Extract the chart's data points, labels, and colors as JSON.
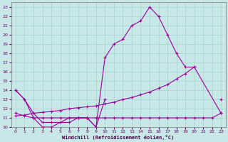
{
  "xlabel": "Windchill (Refroidissement éolien,°C)",
  "bg_color": "#c8e8e8",
  "grid_color": "#a8d0d0",
  "line_color": "#990099",
  "xlim": [
    -0.5,
    23.5
  ],
  "ylim": [
    10,
    23.5
  ],
  "xticks": [
    0,
    1,
    2,
    3,
    4,
    5,
    6,
    7,
    8,
    9,
    10,
    11,
    12,
    13,
    14,
    15,
    16,
    17,
    18,
    19,
    20,
    21,
    22,
    23
  ],
  "yticks": [
    10,
    11,
    12,
    13,
    14,
    15,
    16,
    17,
    18,
    19,
    20,
    21,
    22,
    23
  ],
  "series": [
    {
      "x": [
        0,
        1,
        2,
        3,
        4,
        5,
        6,
        7,
        8,
        9,
        10,
        11,
        12,
        13,
        14,
        15,
        16,
        17,
        18,
        19,
        20,
        21,
        22,
        23
      ],
      "y": [
        14.0,
        13.0,
        11.0,
        10.0,
        10.0,
        10.5,
        10.5,
        11.0,
        11.0,
        10.0,
        17.5,
        19.0,
        19.5,
        21.0,
        21.5,
        23.0,
        22.0,
        20.0,
        18.0,
        16.5,
        16.5,
        null,
        null,
        13.0
      ]
    },
    {
      "x": [
        0,
        1,
        2,
        3,
        4,
        5,
        6,
        7,
        8,
        9,
        10
      ],
      "y": [
        14.0,
        13.0,
        11.5,
        10.5,
        10.5,
        10.5,
        11.0,
        11.0,
        11.0,
        10.0,
        13.0
      ]
    },
    {
      "x": [
        0,
        1,
        2,
        3,
        4,
        5,
        6,
        7,
        8,
        9,
        10,
        11,
        12,
        13,
        14,
        15,
        16,
        17,
        18,
        19,
        20,
        23
      ],
      "y": [
        11.2,
        11.3,
        11.5,
        11.6,
        11.7,
        11.8,
        12.0,
        12.1,
        12.2,
        12.3,
        12.5,
        12.7,
        13.0,
        13.2,
        13.5,
        13.8,
        14.2,
        14.6,
        15.2,
        15.8,
        16.5,
        11.5
      ]
    },
    {
      "x": [
        0,
        1,
        2,
        3,
        4,
        5,
        6,
        7,
        8,
        9,
        10,
        11,
        12,
        13,
        14,
        15,
        16,
        17,
        18,
        19,
        20,
        21,
        22,
        23
      ],
      "y": [
        11.5,
        11.2,
        11.0,
        11.0,
        11.0,
        11.0,
        11.0,
        11.0,
        11.0,
        11.0,
        11.0,
        11.0,
        11.0,
        11.0,
        11.0,
        11.0,
        11.0,
        11.0,
        11.0,
        11.0,
        11.0,
        11.0,
        11.0,
        11.5
      ]
    }
  ]
}
